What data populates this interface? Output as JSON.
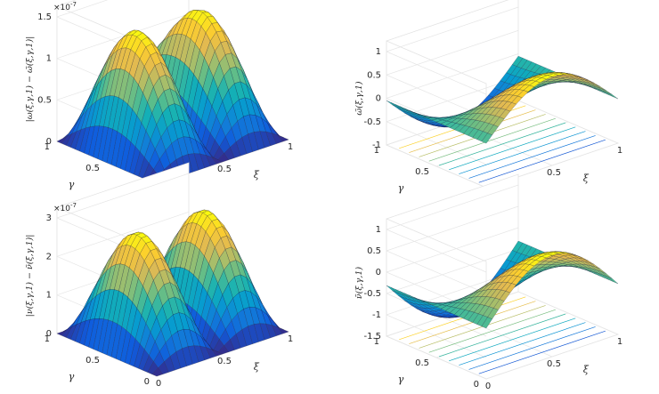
{
  "chart_data": [
    {
      "type": "surface",
      "panel": "top-left",
      "zlabel": "|ω(ξ,γ,1) − ω̃(ξ,γ,1)|",
      "xlabel": "ξ",
      "ylabel": "γ",
      "z_multiplier": "×10",
      "z_multiplier_exp": "-7",
      "xlim": [
        0,
        1
      ],
      "ylim": [
        0,
        1
      ],
      "zlim": [
        0,
        1.5e-07
      ],
      "x_ticks": [
        "0",
        "0.5",
        "1"
      ],
      "y_ticks": [
        "0",
        "0.5",
        "1"
      ],
      "z_ticks": [
        "0",
        "0.5",
        "1",
        "1.5"
      ],
      "colormap": "parula",
      "grid": true,
      "peak_value": 1.5e-07
    },
    {
      "type": "surface",
      "panel": "top-right",
      "zlabel": "ω̃(ξ,γ,1)",
      "xlabel": "ξ",
      "ylabel": "γ",
      "xlim": [
        0,
        1
      ],
      "ylim": [
        0,
        1
      ],
      "zlim": [
        -1,
        1
      ],
      "x_ticks": [
        "0",
        "0.5",
        "1"
      ],
      "y_ticks": [
        "0",
        "0.5",
        "1"
      ],
      "z_ticks": [
        "-1",
        "-0.5",
        "0",
        "0.5",
        "1"
      ],
      "colormap": "parula",
      "contour_projection": true,
      "grid": true
    },
    {
      "type": "surface",
      "panel": "bottom-left",
      "zlabel": "|ν(ξ,γ,1) − ν̃(ξ,γ,1)|",
      "xlabel": "ξ",
      "ylabel": "γ",
      "z_multiplier": "×10",
      "z_multiplier_exp": "-7",
      "xlim": [
        0,
        1
      ],
      "ylim": [
        0,
        1
      ],
      "zlim": [
        0,
        3e-07
      ],
      "x_ticks": [
        "0",
        "0.5",
        "1"
      ],
      "y_ticks": [
        "0",
        "0.5",
        "1"
      ],
      "z_ticks": [
        "0",
        "1",
        "2",
        "3"
      ],
      "colormap": "parula",
      "grid": true,
      "peak_value": 2.9e-07
    },
    {
      "type": "surface",
      "panel": "bottom-right",
      "zlabel": "ν̃(ξ,γ,1)",
      "xlabel": "ξ",
      "ylabel": "γ",
      "xlim": [
        0,
        1
      ],
      "ylim": [
        0,
        1
      ],
      "zlim": [
        -1.5,
        1
      ],
      "x_ticks": [
        "0",
        "0.5",
        "1"
      ],
      "y_ticks": [
        "0",
        "0.5",
        "1"
      ],
      "z_ticks": [
        "-1.5",
        "-1",
        "-0.5",
        "0",
        "0.5",
        "1"
      ],
      "colormap": "parula",
      "contour_projection": true,
      "grid": true
    }
  ]
}
